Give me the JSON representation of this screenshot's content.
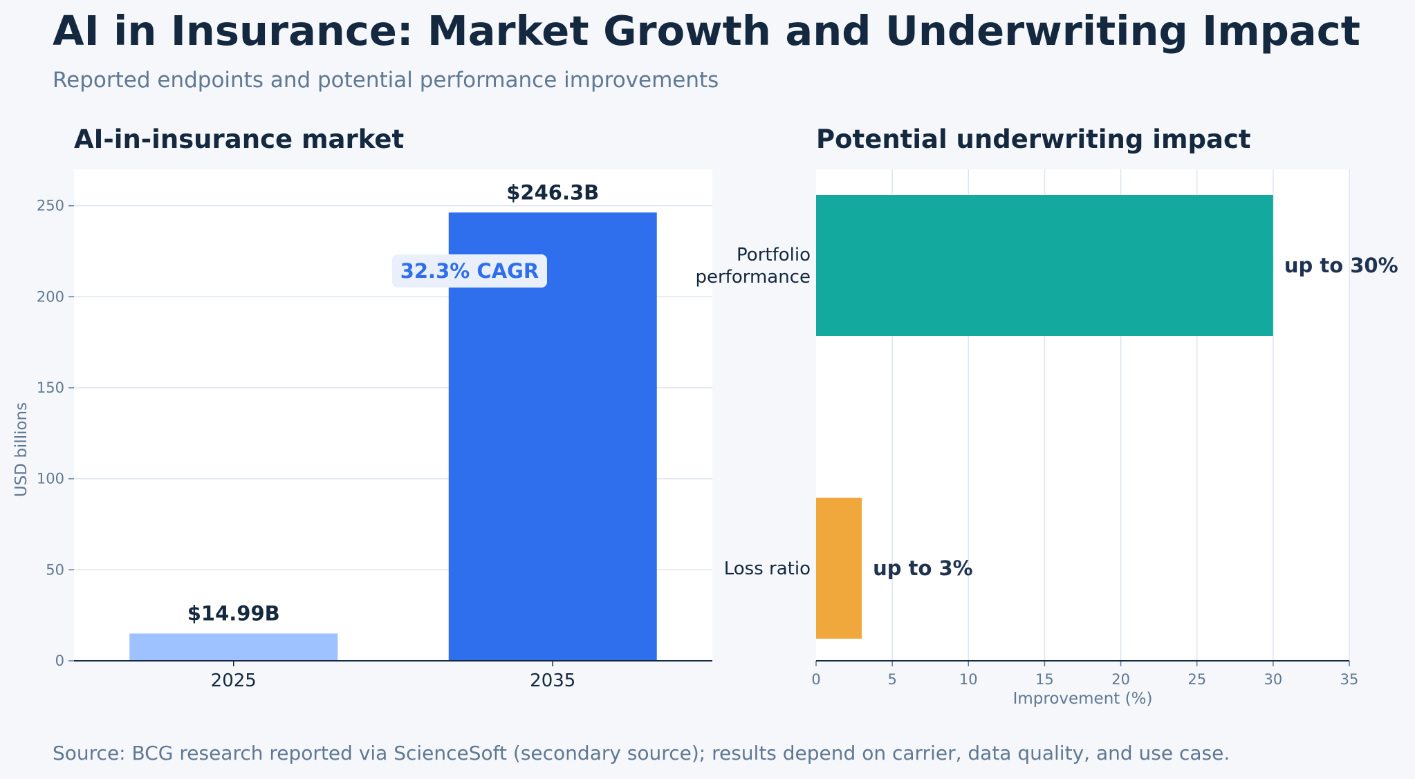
{
  "title": "AI in Insurance: Market Growth and Underwriting Impact",
  "subtitle": "Reported endpoints and potential performance improvements",
  "source": "Source: BCG research reported via ScienceSoft (secondary source); results depend on carrier, data quality, and use case.",
  "colors": {
    "title": "#14283f",
    "muted": "#5f7893",
    "bar_2025": "#9ec1ff",
    "bar_2035": "#2f6fed",
    "bar_portfolio": "#13a99f",
    "bar_loss": "#f0a83c",
    "cagr_text": "#2f6fed",
    "cagr_box": "#e9f0fc"
  },
  "chart_data": [
    {
      "type": "bar",
      "title": "AI-in-insurance market",
      "categories": [
        "2025",
        "2035"
      ],
      "values": [
        14.99,
        246.3
      ],
      "data_labels": [
        "$14.99B",
        "$246.3B"
      ],
      "ylabel": "USD billions",
      "xlabel": "",
      "ylim": [
        0,
        270
      ],
      "yticks": [
        0,
        50,
        100,
        150,
        200,
        250
      ],
      "grid": "horizontal",
      "annotation": "32.3% CAGR"
    },
    {
      "type": "bar",
      "orientation": "horizontal",
      "title": "Potential underwriting impact",
      "categories": [
        "Portfolio\nperformance",
        "Loss ratio"
      ],
      "values": [
        30,
        3
      ],
      "data_labels": [
        "up to 30%",
        "up to 3%"
      ],
      "xlabel": "Improvement (%)",
      "ylabel": "",
      "xlim": [
        0,
        35
      ],
      "xticks": [
        0,
        5,
        10,
        15,
        20,
        25,
        30,
        35
      ],
      "grid": "vertical"
    }
  ]
}
